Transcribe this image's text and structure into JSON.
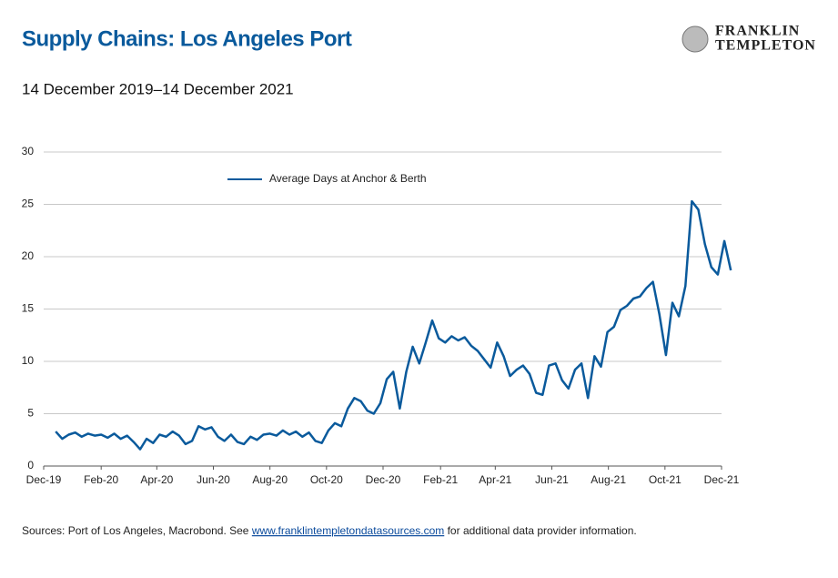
{
  "brand": [
    "FRANKLIN",
    "TEMPLETON"
  ],
  "footer": {
    "before": "Sources: Port of Los Angeles, Macrobond. See ",
    "link": "www.franklintempletondatasources.com",
    "after": " for additional data provider information."
  },
  "chart_data": {
    "type": "line",
    "title": "Supply Chains: Los Angeles Port",
    "subtitle": "14 December 2019–14 December 2021",
    "legend": "top-left",
    "grid": true,
    "x": [
      "2019-12-14",
      "2019-12-21",
      "2019-12-28",
      "2020-01-04",
      "2020-01-11",
      "2020-01-18",
      "2020-01-25",
      "2020-02-01",
      "2020-02-08",
      "2020-02-15",
      "2020-02-22",
      "2020-02-29",
      "2020-03-07",
      "2020-03-14",
      "2020-03-21",
      "2020-03-28",
      "2020-04-04",
      "2020-04-11",
      "2020-04-18",
      "2020-04-25",
      "2020-05-02",
      "2020-05-09",
      "2020-05-16",
      "2020-05-23",
      "2020-05-30",
      "2020-06-06",
      "2020-06-13",
      "2020-06-20",
      "2020-06-27",
      "2020-07-04",
      "2020-07-11",
      "2020-07-18",
      "2020-07-25",
      "2020-08-01",
      "2020-08-08",
      "2020-08-15",
      "2020-08-22",
      "2020-08-29",
      "2020-09-05",
      "2020-09-12",
      "2020-09-19",
      "2020-09-26",
      "2020-10-03",
      "2020-10-10",
      "2020-10-17",
      "2020-10-24",
      "2020-10-31",
      "2020-11-07",
      "2020-11-14",
      "2020-11-21",
      "2020-11-28",
      "2020-12-05",
      "2020-12-12",
      "2020-12-19",
      "2020-12-26",
      "2021-01-02",
      "2021-01-09",
      "2021-01-16",
      "2021-01-23",
      "2021-01-30",
      "2021-02-06",
      "2021-02-13",
      "2021-02-20",
      "2021-02-27",
      "2021-03-06",
      "2021-03-13",
      "2021-03-20",
      "2021-03-27",
      "2021-04-03",
      "2021-04-10",
      "2021-04-17",
      "2021-04-24",
      "2021-05-01",
      "2021-05-08",
      "2021-05-15",
      "2021-05-22",
      "2021-05-29",
      "2021-06-05",
      "2021-06-12",
      "2021-06-19",
      "2021-06-26",
      "2021-07-03",
      "2021-07-10",
      "2021-07-17",
      "2021-07-24",
      "2021-07-31",
      "2021-08-07",
      "2021-08-14",
      "2021-08-21",
      "2021-08-28",
      "2021-09-04",
      "2021-09-11",
      "2021-09-18",
      "2021-09-25",
      "2021-10-02",
      "2021-10-09",
      "2021-10-16",
      "2021-10-23",
      "2021-10-30",
      "2021-11-06",
      "2021-11-13",
      "2021-11-20",
      "2021-11-27",
      "2021-12-04",
      "2021-12-11"
    ],
    "series": [
      {
        "name": "Average Days at Anchor & Berth",
        "color": "#0a5a9c",
        "values": [
          3.3,
          2.6,
          3.0,
          3.2,
          2.8,
          3.1,
          2.9,
          3.0,
          2.7,
          3.1,
          2.6,
          2.9,
          2.3,
          1.6,
          2.6,
          2.2,
          3.0,
          2.8,
          3.3,
          2.9,
          2.1,
          2.4,
          3.8,
          3.5,
          3.7,
          2.8,
          2.4,
          3.0,
          2.3,
          2.1,
          2.8,
          2.5,
          3.0,
          3.1,
          2.9,
          3.4,
          3.0,
          3.3,
          2.8,
          3.2,
          2.4,
          2.2,
          3.4,
          4.1,
          3.8,
          5.5,
          6.5,
          6.2,
          5.3,
          5.0,
          6.0,
          8.3,
          9.0,
          5.5,
          9.0,
          11.4,
          9.8,
          11.8,
          13.9,
          12.2,
          11.8,
          12.4,
          12.0,
          12.3,
          11.5,
          11.0,
          10.2,
          9.4,
          11.8,
          10.5,
          8.6,
          9.2,
          9.6,
          8.8,
          7.0,
          6.8,
          9.6,
          9.8,
          8.2,
          7.4,
          9.2,
          9.8,
          6.5,
          10.5,
          9.5,
          12.8,
          13.3,
          14.9,
          15.3,
          16.0,
          16.2,
          17.0,
          17.6,
          14.5,
          10.6,
          15.6,
          14.3,
          17.2,
          25.3,
          24.5,
          21.2,
          19.0,
          18.3,
          21.5,
          18.7
        ]
      }
    ],
    "xlim": [
      "2019-12-01",
      "2021-12-01"
    ],
    "xticks": [
      {
        "value": "2019-12-01",
        "label": "Dec-19"
      },
      {
        "value": "2020-02-01",
        "label": "Feb-20"
      },
      {
        "value": "2020-04-01",
        "label": "Apr-20"
      },
      {
        "value": "2020-06-01",
        "label": "Jun-20"
      },
      {
        "value": "2020-08-01",
        "label": "Aug-20"
      },
      {
        "value": "2020-10-01",
        "label": "Oct-20"
      },
      {
        "value": "2020-12-01",
        "label": "Dec-20"
      },
      {
        "value": "2021-02-01",
        "label": "Feb-21"
      },
      {
        "value": "2021-04-01",
        "label": "Apr-21"
      },
      {
        "value": "2021-06-01",
        "label": "Jun-21"
      },
      {
        "value": "2021-08-01",
        "label": "Aug-21"
      },
      {
        "value": "2021-10-01",
        "label": "Oct-21"
      },
      {
        "value": "2021-12-01",
        "label": "Dec-21"
      }
    ],
    "ylim": [
      0,
      30
    ],
    "yticks": [
      0,
      5,
      10,
      15,
      20,
      25,
      30
    ]
  }
}
